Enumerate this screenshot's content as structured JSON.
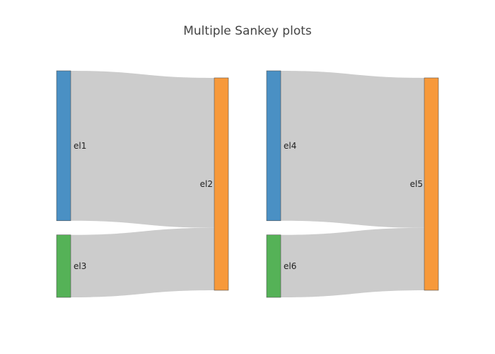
{
  "chart_title": "Multiple Sankey plots",
  "chart_data": [
    {
      "type": "sankey",
      "nodes": [
        {
          "id": "a",
          "label": "el1",
          "color": "#4a90c4"
        },
        {
          "id": "b",
          "label": "el2",
          "color": "#f7993a"
        },
        {
          "id": "c",
          "label": "el3",
          "color": "#55b257"
        }
      ],
      "links": [
        {
          "source": "a",
          "target": "b",
          "value": 2.4
        },
        {
          "source": "c",
          "target": "b",
          "value": 1
        }
      ],
      "link_color": "#cccccc"
    },
    {
      "type": "sankey",
      "nodes": [
        {
          "id": "a",
          "label": "el4",
          "color": "#4a90c4"
        },
        {
          "id": "b",
          "label": "el5",
          "color": "#f7993a"
        },
        {
          "id": "c",
          "label": "el6",
          "color": "#55b257"
        }
      ],
      "links": [
        {
          "source": "a",
          "target": "b",
          "value": 2.4
        },
        {
          "source": "c",
          "target": "b",
          "value": 1
        }
      ],
      "link_color": "#cccccc"
    }
  ]
}
